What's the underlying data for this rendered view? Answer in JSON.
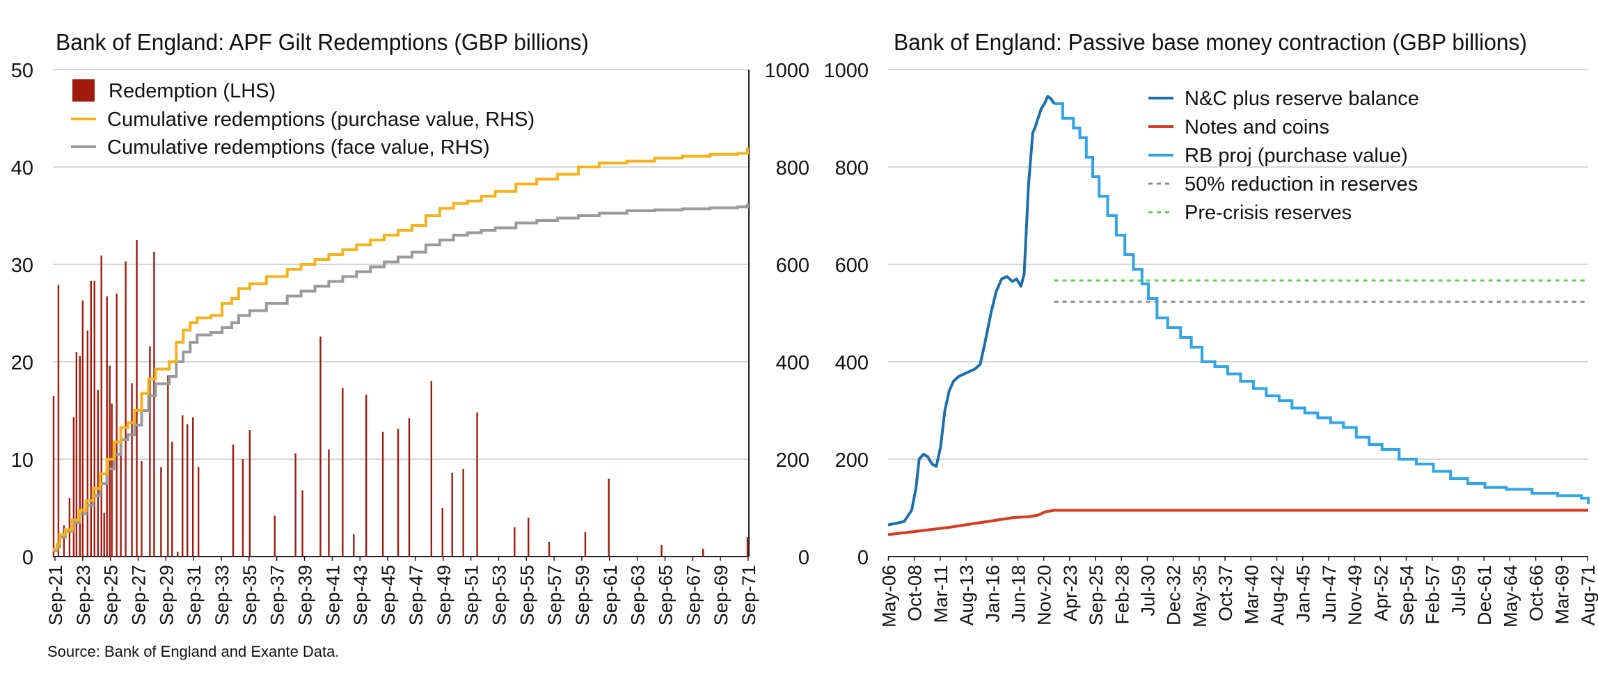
{
  "source_note": "Source: Bank of England and Exante Data.",
  "chart_data": [
    {
      "type": "bar",
      "title": "Bank of England: APF Gilt Redemptions (GBP billions)",
      "xlabel": "",
      "ylabel": "",
      "ylim": [
        0,
        50
      ],
      "y2lim": [
        0,
        1000
      ],
      "yticks": [
        0,
        10,
        20,
        30,
        40,
        50
      ],
      "y2ticks": [
        0,
        200,
        400,
        600,
        800,
        1000
      ],
      "xlim": [
        2021.6,
        2071.8
      ],
      "x_tick_labels": [
        "Sep-21",
        "Sep-23",
        "Sep-25",
        "Sep-27",
        "Sep-29",
        "Sep-31",
        "Sep-33",
        "Sep-35",
        "Sep-37",
        "Sep-39",
        "Sep-41",
        "Sep-43",
        "Sep-45",
        "Sep-47",
        "Sep-49",
        "Sep-51",
        "Sep-53",
        "Sep-55",
        "Sep-57",
        "Sep-59",
        "Sep-61",
        "Sep-63",
        "Sep-65",
        "Sep-67",
        "Sep-69",
        "Sep-71"
      ],
      "grid": true,
      "legend_position": "top-left",
      "colors": {
        "redemption": "#a01a0e",
        "purchase": "#f5b21b",
        "face": "#9a9a9a",
        "grid": "#c8c8c8"
      },
      "series": [
        {
          "name": "Redemption (LHS)",
          "kind": "bar",
          "axis": "left",
          "x": [
            2021.65,
            2022.0,
            2022.4,
            2022.8,
            2023.1,
            2023.3,
            2023.55,
            2023.75,
            2024.1,
            2024.35,
            2024.6,
            2024.85,
            2025.1,
            2025.3,
            2025.5,
            2025.7,
            2025.85,
            2026.2,
            2026.5,
            2026.85,
            2027.3,
            2027.65,
            2028.0,
            2028.6,
            2028.9,
            2029.4,
            2029.9,
            2030.2,
            2030.6,
            2030.95,
            2031.3,
            2031.7,
            2032.1,
            2034.6,
            2035.3,
            2035.8,
            2037.6,
            2039.1,
            2039.6,
            2040.9,
            2041.5,
            2042.5,
            2043.3,
            2044.2,
            2045.4,
            2046.5,
            2047.3,
            2048.9,
            2049.7,
            2050.4,
            2051.2,
            2052.2,
            2054.9,
            2055.9,
            2057.4,
            2060.0,
            2061.7,
            2065.5,
            2068.5,
            2071.7
          ],
          "values": [
            16.5,
            27.9,
            3.2,
            6,
            14.3,
            21,
            20.6,
            26.3,
            23.2,
            28.3,
            28.3,
            17.1,
            30.9,
            4.5,
            26.7,
            19.6,
            15.7,
            27,
            12,
            30.3,
            17.8,
            32.5,
            9.8,
            21.6,
            31.3,
            9.2,
            18.6,
            11.8,
            0.5,
            14.5,
            13.6,
            14.3,
            9.2,
            11.5,
            10,
            13,
            4.2,
            10.6,
            6.8,
            22.6,
            11,
            17.3,
            2.3,
            16.6,
            12.8,
            13.1,
            14.2,
            18,
            5,
            8.6,
            9,
            14.8,
            3,
            4,
            1.5,
            2.5,
            8,
            1.2,
            0.8,
            2
          ],
          "values_note": ""
        },
        {
          "name": "Cumulative redemptions (purchase value, RHS)",
          "kind": "step",
          "axis": "right",
          "x": [
            2021.6,
            2021.9,
            2022.1,
            2022.5,
            2023.0,
            2023.5,
            2024.0,
            2024.5,
            2025.0,
            2025.5,
            2026.0,
            2026.5,
            2027.0,
            2027.5,
            2028.0,
            2028.5,
            2029.0,
            2030.0,
            2030.5,
            2031.0,
            2031.5,
            2032.0,
            2033.0,
            2033.8,
            2034.5,
            2035.0,
            2035.8,
            2037.0,
            2038.5,
            2039.5,
            2040.5,
            2041.5,
            2042.5,
            2043.5,
            2044.5,
            2045.5,
            2046.5,
            2047.5,
            2048.5,
            2049.5,
            2050.5,
            2051.5,
            2052.5,
            2053.5,
            2055.0,
            2056.5,
            2058.0,
            2059.5,
            2061.0,
            2063.0,
            2065.0,
            2067.0,
            2069.0,
            2071.0,
            2071.7
          ],
          "values": [
            15,
            25,
            45,
            55,
            75,
            95,
            115,
            140,
            170,
            200,
            235,
            265,
            275,
            300,
            335,
            365,
            385,
            400,
            440,
            465,
            480,
            490,
            495,
            520,
            530,
            550,
            560,
            575,
            590,
            600,
            610,
            620,
            630,
            640,
            650,
            660,
            670,
            680,
            700,
            715,
            725,
            730,
            740,
            750,
            765,
            775,
            785,
            800,
            808,
            812,
            818,
            822,
            826,
            828,
            840
          ]
        },
        {
          "name": "Cumulative redemptions (face value, RHS)",
          "kind": "step",
          "axis": "right",
          "x": [
            2021.6,
            2021.9,
            2022.1,
            2022.5,
            2023.0,
            2023.5,
            2024.0,
            2024.5,
            2025.0,
            2025.5,
            2026.0,
            2026.5,
            2027.0,
            2027.5,
            2028.0,
            2028.5,
            2029.0,
            2030.0,
            2030.5,
            2031.0,
            2031.5,
            2032.0,
            2033.0,
            2033.8,
            2034.5,
            2035.0,
            2035.8,
            2037.0,
            2038.5,
            2039.5,
            2040.5,
            2041.5,
            2042.5,
            2043.5,
            2044.5,
            2045.5,
            2046.5,
            2047.5,
            2048.5,
            2049.5,
            2050.5,
            2051.5,
            2052.5,
            2053.5,
            2055.0,
            2056.5,
            2058.0,
            2059.5,
            2061.0,
            2063.0,
            2065.0,
            2067.0,
            2069.0,
            2071.0,
            2071.7
          ],
          "values": [
            12,
            20,
            40,
            52,
            70,
            88,
            105,
            125,
            150,
            180,
            210,
            240,
            250,
            270,
            300,
            330,
            355,
            370,
            400,
            420,
            440,
            455,
            460,
            470,
            480,
            495,
            505,
            520,
            535,
            545,
            555,
            565,
            575,
            585,
            595,
            605,
            615,
            625,
            640,
            650,
            660,
            665,
            670,
            675,
            685,
            690,
            695,
            700,
            705,
            710,
            712,
            714,
            716,
            718,
            725
          ]
        }
      ]
    },
    {
      "type": "line",
      "title": "Bank of England: Passive base money contraction (GBP billions)",
      "xlabel": "",
      "ylabel": "",
      "ylim": [
        0,
        1000
      ],
      "y2lim": [
        0,
        1000
      ],
      "yticks": [
        0,
        200,
        400,
        600,
        800,
        1000
      ],
      "y2ticks": [
        0,
        200,
        400,
        600,
        800,
        1000
      ],
      "xlim": [
        2006.3,
        2071.65
      ],
      "x_tick_labels": [
        "May-06",
        "Oct-08",
        "Mar-11",
        "Aug-13",
        "Jan-16",
        "Jun-18",
        "Nov-20",
        "Apr-23",
        "Sep-25",
        "Feb-28",
        "Jul-30",
        "Dec-32",
        "May-35",
        "Oct-37",
        "Mar-40",
        "Aug-42",
        "Jan-45",
        "Jun-47",
        "Nov-49",
        "Apr-52",
        "Sep-54",
        "Feb-57",
        "Jul-59",
        "Dec-61",
        "May-64",
        "Oct-66",
        "Mar-69",
        "Aug-71"
      ],
      "grid": true,
      "legend_position": "top-right",
      "colors": {
        "nc_reserve": "#1c6fab",
        "notes": "#d63b1f",
        "rb_proj": "#2fa4e7",
        "half": "#8a8a8a",
        "precrisis": "#5fd14f",
        "grid": "#c8c8c8"
      },
      "series": [
        {
          "name": "N&C plus reserve balance",
          "kind": "line",
          "x": [
            2006.3,
            2007.0,
            2007.8,
            2008.5,
            2008.9,
            2009.2,
            2009.6,
            2010.0,
            2010.4,
            2010.8,
            2011.2,
            2011.6,
            2012.0,
            2012.4,
            2012.9,
            2013.4,
            2013.9,
            2014.4,
            2014.9,
            2015.4,
            2015.9,
            2016.4,
            2016.9,
            2017.4,
            2017.9,
            2018.3,
            2018.7,
            2019.0,
            2019.4,
            2019.8,
            2020.0,
            2020.3,
            2020.6,
            2020.9,
            2021.2,
            2021.5,
            2021.8
          ],
          "values": [
            65,
            68,
            72,
            95,
            140,
            200,
            210,
            205,
            190,
            185,
            225,
            300,
            340,
            360,
            370,
            375,
            380,
            385,
            395,
            445,
            500,
            545,
            570,
            575,
            565,
            570,
            555,
            580,
            760,
            870,
            880,
            900,
            920,
            930,
            945,
            940,
            930
          ]
        },
        {
          "name": "Notes and coins",
          "kind": "line",
          "x": [
            2006.3,
            2009.0,
            2012.0,
            2015.0,
            2018.0,
            2019.5,
            2020.3,
            2021.0,
            2021.8,
            2071.65
          ],
          "values": [
            45,
            52,
            60,
            70,
            80,
            82,
            85,
            92,
            95,
            95
          ]
        },
        {
          "name": "RB proj (purchase value)",
          "kind": "step",
          "x": [
            2021.8,
            2022.6,
            2023.6,
            2024.2,
            2024.8,
            2025.4,
            2026.0,
            2026.8,
            2027.6,
            2028.4,
            2029.2,
            2030.0,
            2030.6,
            2031.4,
            2032.4,
            2033.6,
            2034.6,
            2035.6,
            2036.8,
            2038.0,
            2039.2,
            2040.4,
            2041.6,
            2042.8,
            2044.0,
            2045.2,
            2046.4,
            2047.6,
            2048.8,
            2050.0,
            2051.2,
            2052.4,
            2054.0,
            2055.6,
            2057.2,
            2058.8,
            2060.4,
            2062.0,
            2064.0,
            2066.4,
            2068.8,
            2071.0,
            2071.65
          ],
          "values": [
            930,
            900,
            880,
            860,
            820,
            780,
            740,
            700,
            660,
            620,
            590,
            560,
            530,
            490,
            470,
            450,
            430,
            400,
            390,
            375,
            360,
            345,
            330,
            320,
            305,
            295,
            285,
            275,
            265,
            245,
            230,
            220,
            200,
            190,
            175,
            160,
            150,
            142,
            138,
            130,
            125,
            120,
            108
          ]
        },
        {
          "name": "50% reduction in reserves",
          "kind": "dashed",
          "x": [
            2021.8,
            2071.65
          ],
          "values": [
            523,
            523
          ]
        },
        {
          "name": "Pre-crisis reserves",
          "kind": "dashed",
          "x": [
            2021.8,
            2071.65
          ],
          "values": [
            567,
            567
          ]
        }
      ]
    }
  ]
}
